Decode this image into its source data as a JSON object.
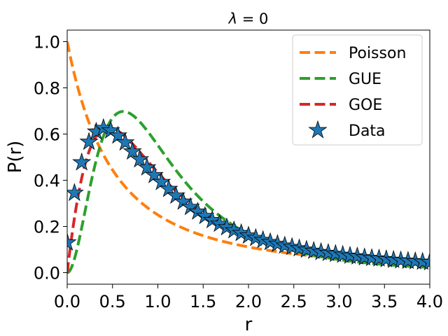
{
  "chart_data": {
    "type": "line",
    "title_symbol": "λ",
    "title_rest": " = 0",
    "xlabel": "r",
    "ylabel": "P(r)",
    "xlim": [
      0,
      4
    ],
    "ylim": [
      -0.05,
      1.05
    ],
    "xticks": [
      0.0,
      0.5,
      1.0,
      1.5,
      2.0,
      2.5,
      3.0,
      3.5,
      4.0
    ],
    "xtick_labels": [
      "0.0",
      "0.5",
      "1.0",
      "1.5",
      "2.0",
      "2.5",
      "3.0",
      "3.5",
      "4.0"
    ],
    "yticks": [
      0.0,
      0.2,
      0.4,
      0.6,
      0.8,
      1.0
    ],
    "ytick_labels": [
      "0.0",
      "0.2",
      "0.4",
      "0.6",
      "0.8",
      "1.0"
    ],
    "grid": false,
    "legend_position": "top-right",
    "series": [
      {
        "name": "Poisson",
        "kind": "dashed-line",
        "color": "#ff7f0e",
        "formula": "1/(1+r)^2"
      },
      {
        "name": "GUE",
        "kind": "dashed-line",
        "color": "#2ca02c",
        "formula": "(81*sqrt(3)/(4*pi)) * (r+r^2)^2 / (1+r+r^2)^4"
      },
      {
        "name": "GOE",
        "kind": "dashed-line",
        "color": "#d62728",
        "formula": "(27/8) * (r+r^2) / (1+r+r^2)^2.5"
      },
      {
        "name": "Data",
        "kind": "star-markers",
        "color": "#1f77b4",
        "x": [
          0.0,
          0.08,
          0.16,
          0.24,
          0.32,
          0.4,
          0.48,
          0.56,
          0.64,
          0.72,
          0.8,
          0.88,
          0.96,
          1.04,
          1.12,
          1.2,
          1.28,
          1.36,
          1.44,
          1.52,
          1.6,
          1.68,
          1.76,
          1.84,
          1.92,
          2.0,
          2.08,
          2.16,
          2.24,
          2.32,
          2.4,
          2.48,
          2.56,
          2.64,
          2.72,
          2.8,
          2.88,
          2.96,
          3.04,
          3.12,
          3.2,
          3.28,
          3.36,
          3.44,
          3.52,
          3.6,
          3.68,
          3.76,
          3.84,
          3.92,
          4.0
        ],
        "y": [
          0.13,
          0.345,
          0.477,
          0.566,
          0.61,
          0.626,
          0.615,
          0.593,
          0.563,
          0.524,
          0.49,
          0.455,
          0.422,
          0.392,
          0.362,
          0.333,
          0.307,
          0.284,
          0.264,
          0.245,
          0.227,
          0.211,
          0.196,
          0.183,
          0.171,
          0.16,
          0.15,
          0.141,
          0.132,
          0.124,
          0.117,
          0.111,
          0.105,
          0.099,
          0.094,
          0.089,
          0.085,
          0.081,
          0.077,
          0.073,
          0.07,
          0.066,
          0.063,
          0.061,
          0.058,
          0.055,
          0.053,
          0.051,
          0.049,
          0.047,
          0.045
        ]
      }
    ]
  }
}
